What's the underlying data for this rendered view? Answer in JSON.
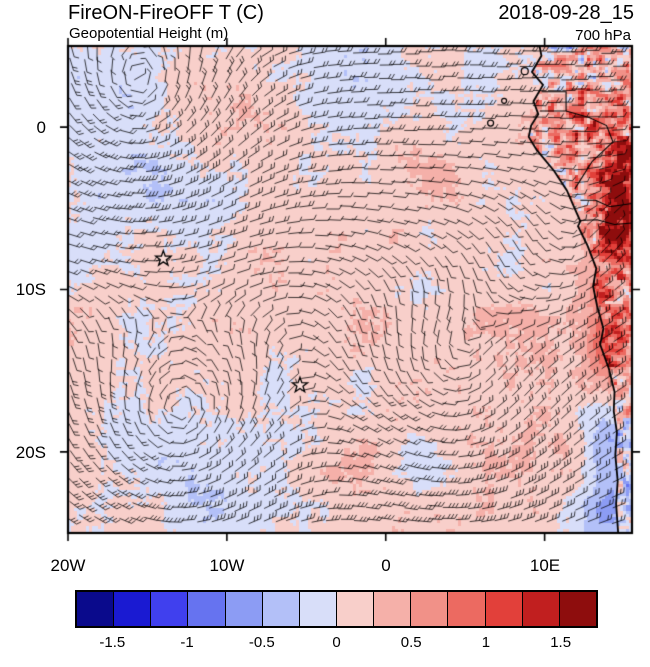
{
  "header": {
    "title_left": "FireON-FireOFF T (C)",
    "title_right": "2018-09-28_15",
    "subtitle_left": "Geopotential Height (m)",
    "subtitle_right": "700 hPa"
  },
  "chart_data": {
    "type": "heatmap",
    "title": "FireON-FireOFF T (C)",
    "contour_field": "Geopotential Height (m)",
    "valid_time": "2018-09-28_15",
    "pressure_level": "700 hPa",
    "wind_overlay": "wind barbs",
    "x_axis": {
      "ticks": [
        {
          "label": "20W",
          "lon": -20
        },
        {
          "label": "10W",
          "lon": -10
        },
        {
          "label": "0",
          "lon": 0
        },
        {
          "label": "10E",
          "lon": 10
        }
      ],
      "range": [
        -20,
        15.5
      ]
    },
    "y_axis": {
      "ticks": [
        {
          "label": "0",
          "lat": 0
        },
        {
          "label": "10S",
          "lat": -10
        },
        {
          "label": "20S",
          "lat": -20
        }
      ],
      "range": [
        5,
        -25
      ]
    },
    "markers": [
      {
        "type": "star",
        "lon": -14.0,
        "lat": -8.1
      },
      {
        "type": "star",
        "lon": -5.4,
        "lat": -15.9
      }
    ],
    "colorbar": {
      "units": "C",
      "tick_labels": [
        "-1.5",
        "-1",
        "-0.5",
        "0",
        "0.5",
        "1",
        "1.5"
      ],
      "levels": [
        -1.75,
        -1.5,
        -1.25,
        -1,
        -0.75,
        -0.5,
        -0.25,
        0,
        0.25,
        0.5,
        0.75,
        1,
        1.25,
        1.5,
        1.75
      ],
      "colors": [
        "#0a0a8c",
        "#1a1ad2",
        "#4040ee",
        "#6673f0",
        "#8c9cf4",
        "#b3c0f8",
        "#d8def9",
        "#f8cfca",
        "#f5b0a9",
        "#f19188",
        "#ec6a61",
        "#e2403a",
        "#c11f1f",
        "#8e0d0d"
      ]
    },
    "field_description": "FireON minus FireOFF 700 hPa temperature difference over the SE Atlantic off southwestern Africa: weak warm anomaly (0 to 0.25 C, pink) over most of the ocean with patchy weak cool anomalies (pale blue); strong warm anomalies (dark red) hugging the Angola coast; speckled warm/cool anomalies over land; wind barbs show circulation centers in the southwest, south-central and northwest of the domain; two star markers denote island stations."
  }
}
